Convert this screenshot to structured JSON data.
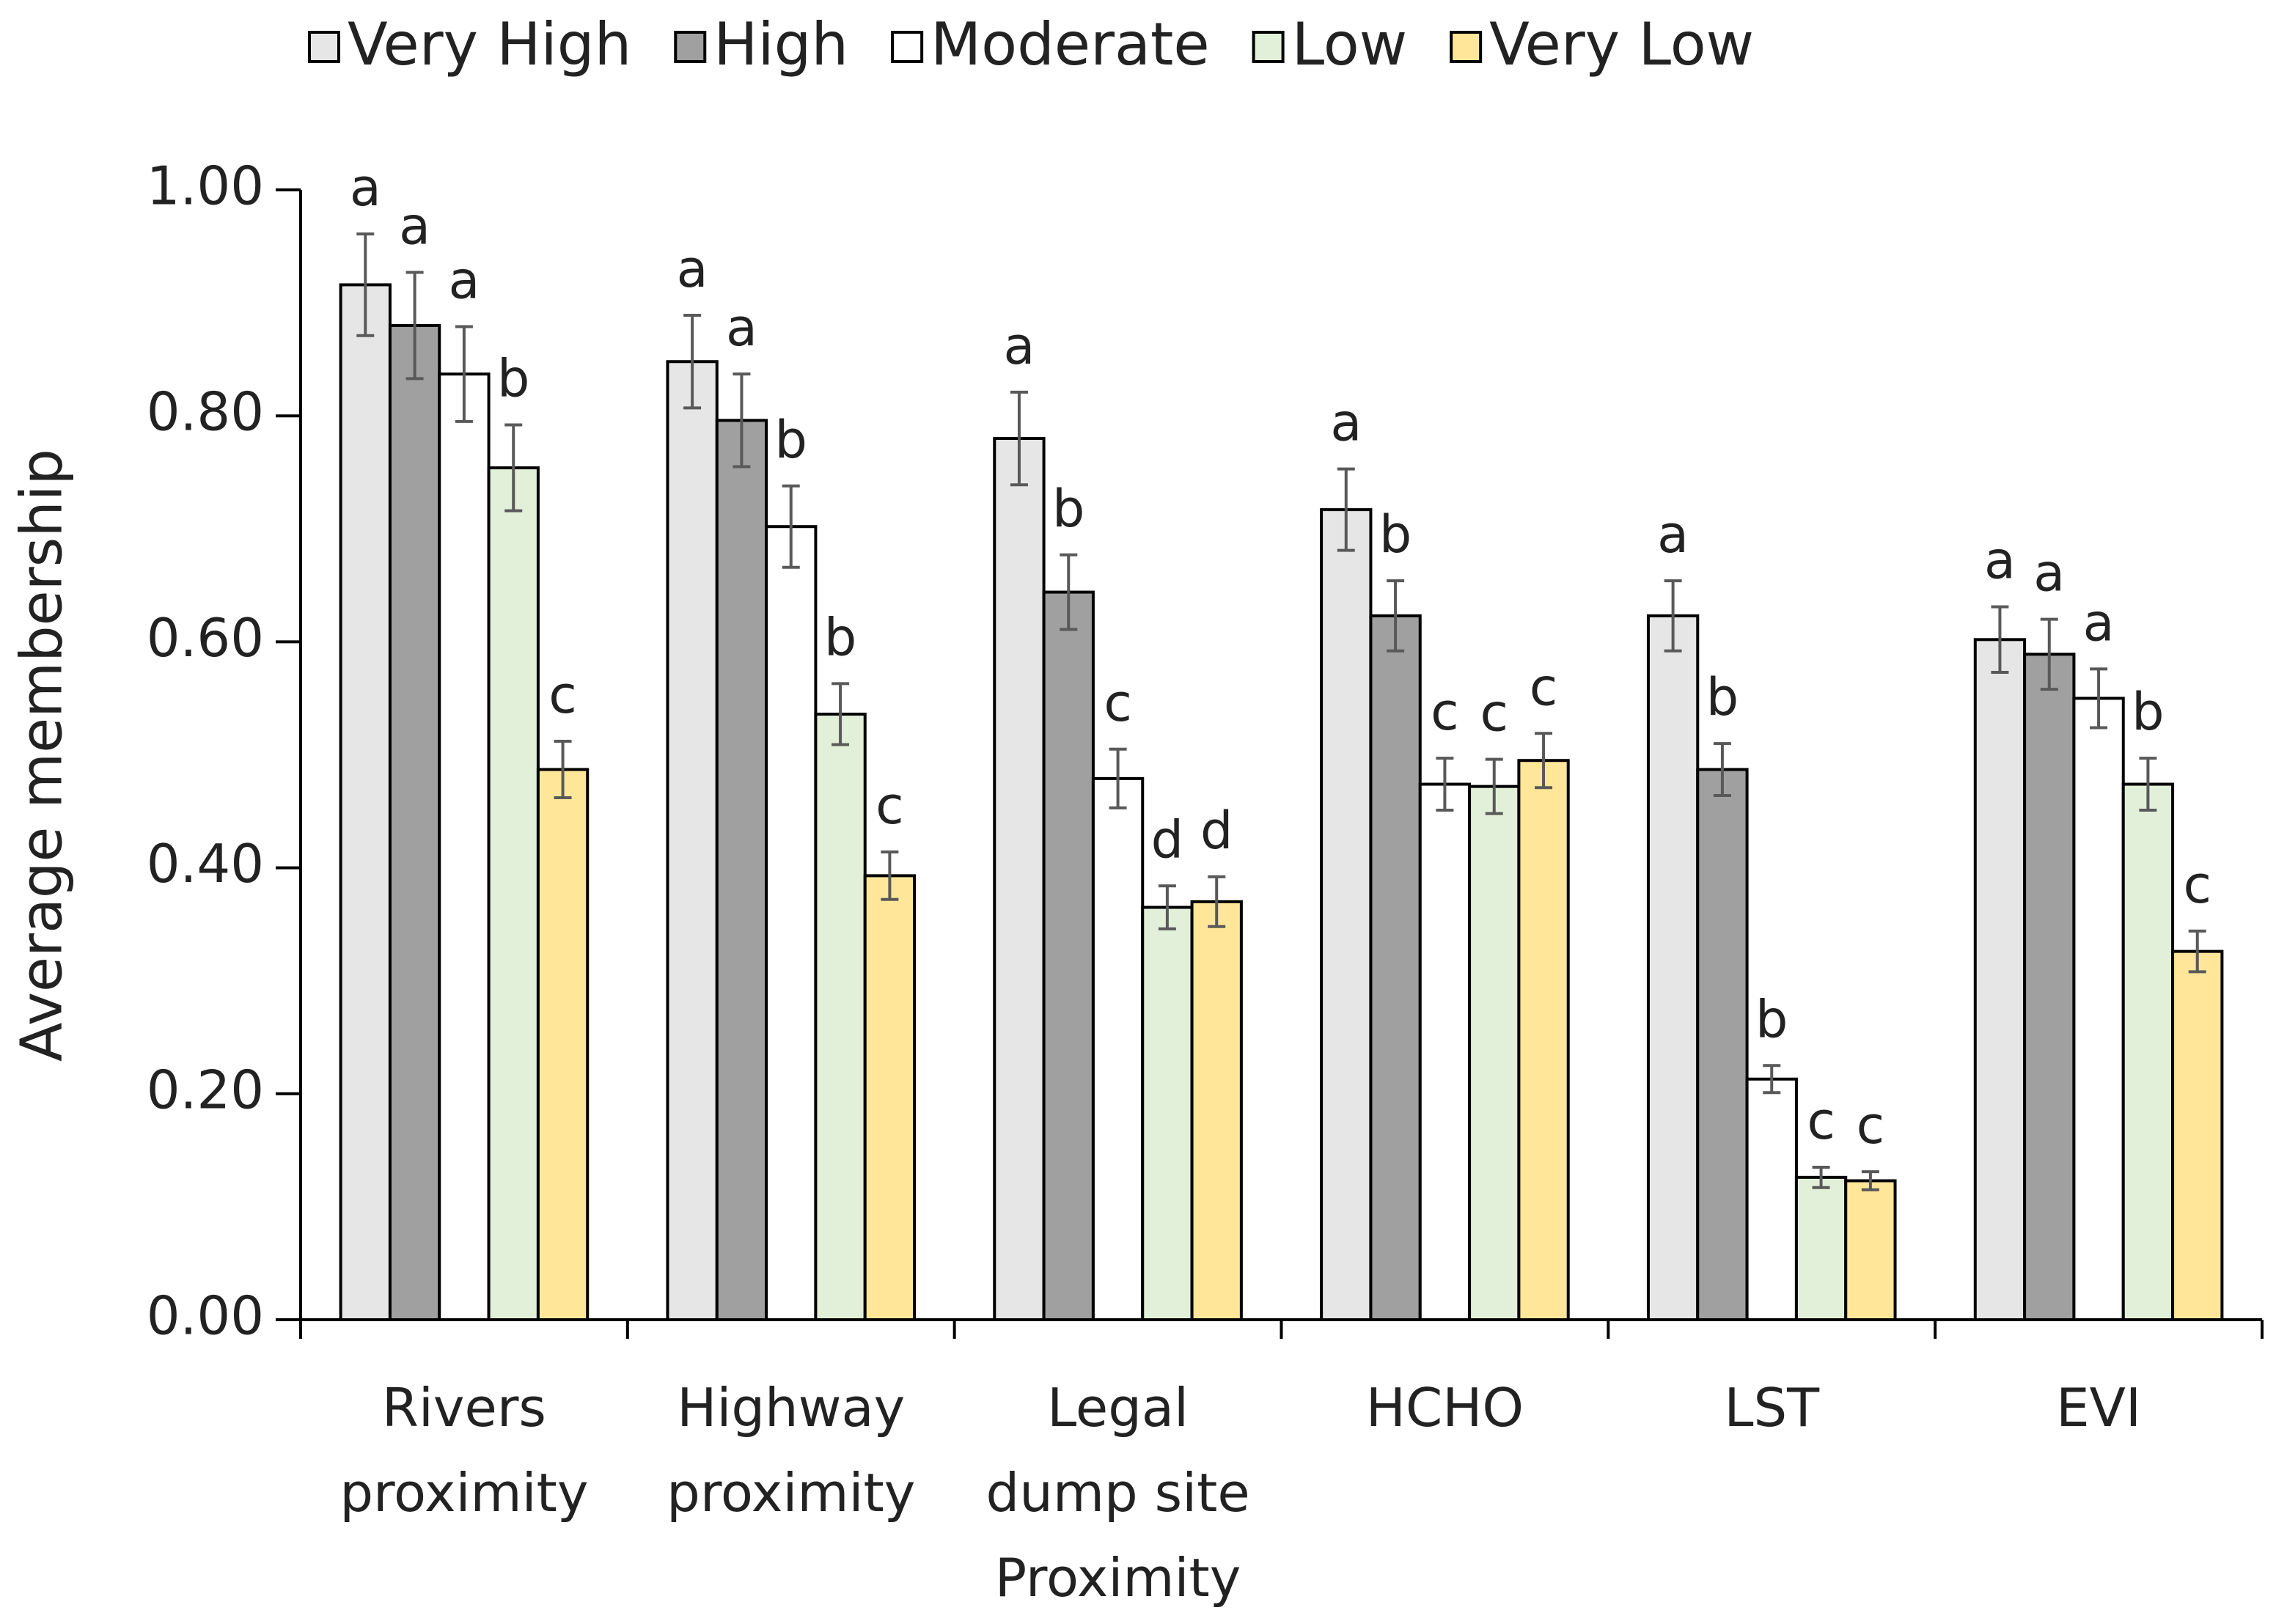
{
  "chart_data": {
    "type": "bar",
    "y_label": "Average membership",
    "categories": [
      "Rivers\nproximity",
      "Highway\nproximity",
      "Legal\ndump site\nProximity",
      "HCHO",
      "LST",
      "EVI"
    ],
    "series": [
      {
        "name": "Very High",
        "color": "#e6e6e6",
        "values": [
          0.916,
          0.848,
          0.78,
          0.717,
          0.623,
          0.602
        ],
        "errors": [
          0.045,
          0.041,
          0.041,
          0.036,
          0.031,
          0.029
        ],
        "letters": [
          "a",
          "a",
          "a",
          "a",
          "a",
          "a"
        ]
      },
      {
        "name": "High",
        "color": "#a0a0a0",
        "values": [
          0.88,
          0.796,
          0.644,
          0.623,
          0.487,
          0.589
        ],
        "errors": [
          0.047,
          0.041,
          0.033,
          0.031,
          0.023,
          0.031
        ],
        "letters": [
          "a",
          "a",
          "b",
          "b",
          "b",
          "a"
        ]
      },
      {
        "name": "Moderate",
        "color": "#ffffff",
        "values": [
          0.837,
          0.702,
          0.479,
          0.474,
          0.213,
          0.55
        ],
        "errors": [
          0.042,
          0.036,
          0.026,
          0.023,
          0.012,
          0.026
        ],
        "letters": [
          "a",
          "b",
          "c",
          "c",
          "b",
          "a"
        ]
      },
      {
        "name": "Low",
        "color": "#e2f0d9",
        "values": [
          0.754,
          0.536,
          0.365,
          0.472,
          0.126,
          0.474
        ],
        "errors": [
          0.038,
          0.027,
          0.019,
          0.024,
          0.009,
          0.023
        ],
        "letters": [
          "b",
          "b",
          "d",
          "c",
          "c",
          "b"
        ]
      },
      {
        "name": "Very Low",
        "color": "#ffe699",
        "values": [
          0.487,
          0.393,
          0.37,
          0.495,
          0.123,
          0.326
        ],
        "errors": [
          0.025,
          0.021,
          0.022,
          0.024,
          0.008,
          0.018
        ],
        "letters": [
          "c",
          "c",
          "d",
          "c",
          "c",
          "c"
        ]
      }
    ],
    "ylim": [
      0,
      1
    ],
    "yticks": [
      {
        "value": 0,
        "label": "0.00"
      },
      {
        "value": 0.2,
        "label": "0.20"
      },
      {
        "value": 0.4,
        "label": "0.40"
      },
      {
        "value": 0.6,
        "label": "0.60"
      },
      {
        "value": 0.8,
        "label": "0.80"
      },
      {
        "value": 1,
        "label": "1.00"
      }
    ],
    "error_color": "#595959",
    "letter_color": "#595959"
  }
}
